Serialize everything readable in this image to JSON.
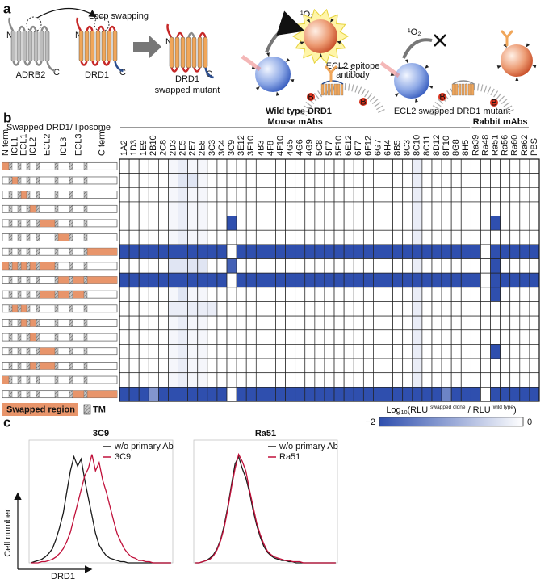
{
  "panel_a": {
    "label": "a",
    "n": "N",
    "c": "C",
    "loop_swapping": "Loop swapping",
    "adrb2": "ADRB2",
    "drd1": "DRD1",
    "mutant": [
      "DRD1",
      "swapped mutant"
    ],
    "singlet_oxygen": "¹O₂",
    "antibody": [
      "ECL2 epitope",
      "antibody"
    ],
    "wild_type": "Wild type DRD1",
    "swapped": "ECL2 swapped DRD1 mutant",
    "biotin": "B"
  },
  "panel_b": {
    "label": "b",
    "construct_title": "Swapped DRD1/ liposome",
    "regions": [
      "N term",
      "ICL1",
      "ECL1",
      "ICL2",
      "ECL2",
      "ICL3",
      "ECL3",
      "C term"
    ],
    "constructs": [
      [
        0
      ],
      [
        1
      ],
      [
        2
      ],
      [
        3
      ],
      [
        4
      ],
      [
        5
      ],
      [
        7
      ],
      [
        0,
        1,
        2,
        3,
        4
      ],
      [
        5,
        6,
        7
      ],
      [
        4,
        5,
        6
      ],
      [
        1,
        2
      ],
      [
        2,
        3
      ],
      [
        3
      ],
      [
        4
      ],
      [
        3,
        4
      ],
      [
        0
      ],
      [
        6,
        7
      ]
    ],
    "colors": {
      "swapped": "#e8956b",
      "tm": "#9a9a9a",
      "low": "#2f4fae",
      "high": "#ffffff"
    },
    "legend": {
      "swapped": "Swapped region",
      "tm": "TM"
    },
    "heatmap": {
      "groups": [
        {
          "name": "Mouse mAbs",
          "columns": [
            "1A2",
            "1D3",
            "1E9",
            "2B10",
            "2C8",
            "2D3",
            "2E5",
            "2E7",
            "2E8",
            "3C3",
            "3C4",
            "3C9",
            "3E12",
            "3F10",
            "4B3",
            "4F8",
            "4F10",
            "4G5",
            "4G6",
            "4G9",
            "5C8",
            "5F7",
            "5F10",
            "6E12",
            "6F7",
            "6F12",
            "6G7",
            "6H4",
            "8B5",
            "8C3",
            "8C10",
            "8C11",
            "8D12",
            "8F10",
            "8G8",
            "8H5"
          ]
        },
        {
          "name": "Rabbit mAbs",
          "columns": [
            "Ra39",
            "Ra48",
            "Ra51",
            "Ra56",
            "Ra60",
            "Ra62"
          ]
        }
      ],
      "extra_columns": [
        "PBS"
      ],
      "values": [
        [
          0,
          0,
          0,
          0,
          0,
          -0.1,
          -0.2,
          -0.1,
          -0.1,
          0,
          0,
          0,
          0,
          0,
          0,
          0,
          0,
          0,
          0,
          0,
          0,
          0,
          0,
          0,
          0,
          0,
          0,
          0,
          0,
          0,
          -0.2,
          0,
          0,
          0,
          0,
          0,
          0,
          0,
          0,
          0,
          0,
          0,
          0
        ],
        [
          0,
          0,
          0,
          0,
          0,
          -0.1,
          -0.3,
          -0.3,
          -0.1,
          0,
          0,
          0,
          0,
          0,
          0,
          0,
          0,
          0,
          0,
          0,
          0,
          0,
          0,
          0,
          0,
          0,
          0,
          0,
          0,
          0,
          -0.2,
          0,
          0,
          0,
          0,
          0,
          0,
          0,
          0,
          0,
          0,
          0,
          0
        ],
        [
          0,
          0,
          0,
          0,
          0,
          -0.1,
          -0.2,
          -0.1,
          -0.1,
          0,
          0,
          0,
          0,
          0,
          0,
          0,
          0,
          0,
          0,
          0,
          0,
          0,
          0,
          0,
          0,
          0,
          0,
          0,
          0,
          0,
          -0.2,
          0,
          0,
          0,
          0,
          0,
          0,
          0,
          0,
          0,
          0,
          0,
          0
        ],
        [
          0,
          0,
          0,
          0,
          0,
          -0.1,
          -0.2,
          -0.1,
          -0.1,
          0,
          0,
          0,
          0,
          0,
          0,
          0,
          0,
          0,
          0,
          0,
          0,
          0,
          0,
          0,
          0,
          0,
          0,
          0,
          0,
          0,
          -0.2,
          0,
          0,
          0,
          0,
          0,
          0,
          0,
          0,
          0,
          0,
          0,
          0
        ],
        [
          0,
          0,
          0,
          0,
          0,
          -0.1,
          -0.2,
          -0.1,
          -0.1,
          0,
          0,
          -2,
          0,
          0,
          0,
          0,
          0,
          0,
          0,
          0,
          0,
          0,
          0,
          0,
          0,
          0,
          0,
          0,
          0,
          0,
          -0.2,
          0,
          0,
          0,
          0,
          0,
          0,
          0,
          -2,
          0,
          0,
          0,
          0
        ],
        [
          0,
          0,
          0,
          0,
          0,
          -0.1,
          -0.2,
          -0.1,
          -0.1,
          0,
          0,
          0,
          0,
          0,
          0,
          0,
          0,
          0,
          0,
          0,
          0,
          0,
          0,
          0,
          0,
          0,
          0,
          0,
          0,
          0,
          -0.2,
          0,
          0,
          0,
          0,
          0,
          0,
          0,
          0,
          0,
          0,
          0,
          0
        ],
        [
          -2,
          -2,
          -2,
          -2,
          -2,
          -2,
          -2,
          -2,
          -2,
          -2,
          -2,
          0,
          -2,
          -2,
          -2,
          -2,
          -2,
          -2,
          -2,
          -2,
          -2,
          -2,
          -2,
          -2,
          -2,
          -2,
          -2,
          -2,
          -2,
          -2,
          -2,
          -2,
          -2,
          -2,
          -2,
          -2,
          -2,
          0,
          -2,
          -2,
          -2,
          -2,
          -2
        ],
        [
          0,
          0,
          0,
          0,
          0,
          -0.3,
          -0.3,
          -0.3,
          -0.3,
          0,
          0,
          -1.8,
          0,
          0,
          0,
          0,
          0,
          0,
          0,
          0,
          0,
          0,
          0,
          0,
          0,
          0,
          0,
          0,
          0,
          0,
          -0.2,
          0,
          0,
          0,
          0,
          0,
          0,
          0,
          -2,
          0,
          0,
          0,
          0
        ],
        [
          -2,
          -2,
          -2,
          -2,
          -2,
          -2,
          -2,
          -2,
          -2,
          -2,
          -2,
          0,
          -2,
          -2,
          -2,
          -2,
          -2,
          -2,
          -2,
          -2,
          -2,
          -2,
          -2,
          -2,
          -2,
          -2,
          -2,
          -2,
          -2,
          -2,
          -2,
          -2,
          -2,
          -2,
          -2,
          -2,
          -2,
          0,
          -2,
          -2,
          -2,
          -2,
          -2
        ],
        [
          0,
          0,
          0,
          0,
          0,
          -0.1,
          -0.3,
          -0.1,
          -0.1,
          0,
          0,
          0,
          0,
          0,
          0,
          0,
          0,
          0,
          0,
          0,
          0,
          0,
          0,
          0,
          0,
          0,
          0,
          0,
          0,
          0,
          -0.2,
          0,
          0,
          0,
          0,
          0,
          0,
          0,
          -2,
          0,
          0,
          0,
          0
        ],
        [
          0,
          0,
          0,
          0,
          0,
          -0.2,
          -0.2,
          -0.2,
          -0.2,
          -0.2,
          0,
          0,
          0,
          0,
          0,
          0,
          0,
          0,
          0,
          0,
          0,
          0,
          0,
          0,
          0,
          0,
          0,
          0,
          0,
          0,
          -0.2,
          0,
          0,
          0,
          0,
          0,
          0,
          0,
          0,
          0,
          0,
          0,
          0
        ],
        [
          0,
          0,
          0,
          0,
          0,
          -0.1,
          -0.2,
          -0.1,
          -0.1,
          0,
          0,
          0,
          0,
          0,
          0,
          0,
          0,
          0,
          0,
          0,
          0,
          0,
          0,
          0,
          0,
          0,
          0,
          0,
          0,
          0,
          -0.2,
          0,
          0,
          0,
          0,
          0,
          0,
          0,
          0,
          0,
          0,
          0,
          0
        ],
        [
          0,
          0,
          0,
          0,
          0,
          -0.1,
          -0.2,
          -0.1,
          -0.1,
          0,
          0,
          0,
          0,
          0,
          0,
          0,
          0,
          0,
          0,
          0,
          0,
          0,
          0,
          0,
          0,
          0,
          0,
          0,
          0,
          0,
          -0.2,
          0,
          0,
          0,
          0,
          0,
          0,
          0,
          0,
          0,
          0,
          0,
          0
        ],
        [
          0,
          0,
          0,
          0,
          0,
          -0.1,
          -0.2,
          -0.1,
          -0.1,
          0,
          0,
          0,
          0,
          0,
          0,
          0,
          0,
          0,
          0,
          0,
          0,
          0,
          0,
          0,
          0,
          0,
          0,
          0,
          0,
          0,
          -0.2,
          0,
          0,
          0,
          0,
          0,
          0,
          0,
          -2,
          0,
          0,
          0,
          0
        ],
        [
          0,
          0,
          0,
          0,
          0,
          -0.1,
          -0.2,
          -0.1,
          -0.1,
          0,
          0,
          0,
          0,
          0,
          0,
          0,
          0,
          0,
          0,
          0,
          0,
          0,
          0,
          0,
          0,
          0,
          0,
          0,
          0,
          0,
          -0.2,
          0,
          0,
          0,
          0,
          0,
          0,
          0,
          0,
          0,
          0,
          0,
          0
        ],
        [
          0,
          0,
          0,
          0,
          0,
          -0.1,
          -0.2,
          -0.1,
          -0.1,
          0,
          0,
          0,
          0,
          0,
          0,
          0,
          0,
          0,
          0,
          0,
          0,
          0,
          0,
          0,
          0,
          0,
          0,
          0,
          0,
          0,
          -0.2,
          0,
          0,
          0,
          0,
          0,
          0,
          0,
          0,
          0,
          0,
          0,
          0
        ],
        [
          -2,
          -2,
          -2,
          -1.2,
          -2,
          -2,
          -2,
          -2,
          -2,
          -2,
          -2,
          0,
          -2,
          -2,
          -2,
          -2,
          -2,
          -2,
          -2,
          -2,
          -2,
          -2,
          -2,
          -2,
          -2,
          -2,
          -2,
          -2,
          -2,
          -2,
          -2,
          -2,
          -2,
          -1.4,
          -2,
          -2,
          -2,
          0,
          -2,
          -2,
          -2,
          -2,
          -2
        ]
      ],
      "colorbar": {
        "label": {
          "log": "Log",
          "base": "10",
          "open": "(RLU",
          "num": "swapped clone",
          "mid": " / RLU",
          "den": "wild type",
          "close": ")"
        },
        "lim": [
          -2,
          0
        ],
        "ticks": [
          {
            "value": -2,
            "label": "−2"
          },
          0
        ]
      }
    }
  },
  "panel_c": {
    "label": "c",
    "y_label": "Cell number",
    "x_label": "DRD1"
  },
  "chart_data": [
    {
      "type": "line",
      "title": "3C9",
      "ylim": [
        0,
        100
      ],
      "series": [
        {
          "name": "w/o primary Ab",
          "color": "#1a1a1a",
          "values": [
            0,
            1,
            2,
            3,
            5,
            8,
            12,
            20,
            30,
            42,
            60,
            78,
            90,
            82,
            88,
            70,
            55,
            40,
            25,
            15,
            10,
            6,
            4,
            3,
            2,
            1,
            1,
            0,
            0,
            0,
            0,
            0,
            0,
            0,
            0,
            0,
            0,
            0,
            0,
            0
          ]
        },
        {
          "name": "3C9",
          "color": "#c0103a",
          "values": [
            0,
            0,
            0,
            1,
            1,
            2,
            3,
            5,
            8,
            12,
            18,
            26,
            38,
            50,
            62,
            74,
            80,
            92,
            78,
            85,
            70,
            60,
            48,
            36,
            25,
            18,
            12,
            8,
            5,
            4,
            2,
            2,
            1,
            1,
            0,
            0,
            0,
            0,
            0,
            0
          ]
        }
      ]
    },
    {
      "type": "line",
      "title": "Ra51",
      "ylim": [
        0,
        100
      ],
      "series": [
        {
          "name": "w/o primary Ab",
          "color": "#1a1a1a",
          "values": [
            0,
            0,
            1,
            2,
            4,
            7,
            12,
            20,
            32,
            48,
            66,
            84,
            90,
            80,
            72,
            60,
            45,
            32,
            22,
            14,
            9,
            6,
            4,
            3,
            2,
            2,
            1,
            1,
            0,
            0,
            0,
            0,
            0,
            0,
            0,
            0,
            0,
            0,
            0,
            0
          ]
        },
        {
          "name": "Ra51",
          "color": "#c0103a",
          "values": [
            0,
            0,
            1,
            2,
            3,
            6,
            11,
            19,
            30,
            46,
            64,
            80,
            92,
            86,
            78,
            62,
            48,
            34,
            24,
            16,
            10,
            7,
            5,
            4,
            3,
            2,
            2,
            1,
            1,
            1,
            0,
            0,
            0,
            0,
            0,
            0,
            0,
            0,
            0,
            0
          ]
        }
      ]
    }
  ]
}
